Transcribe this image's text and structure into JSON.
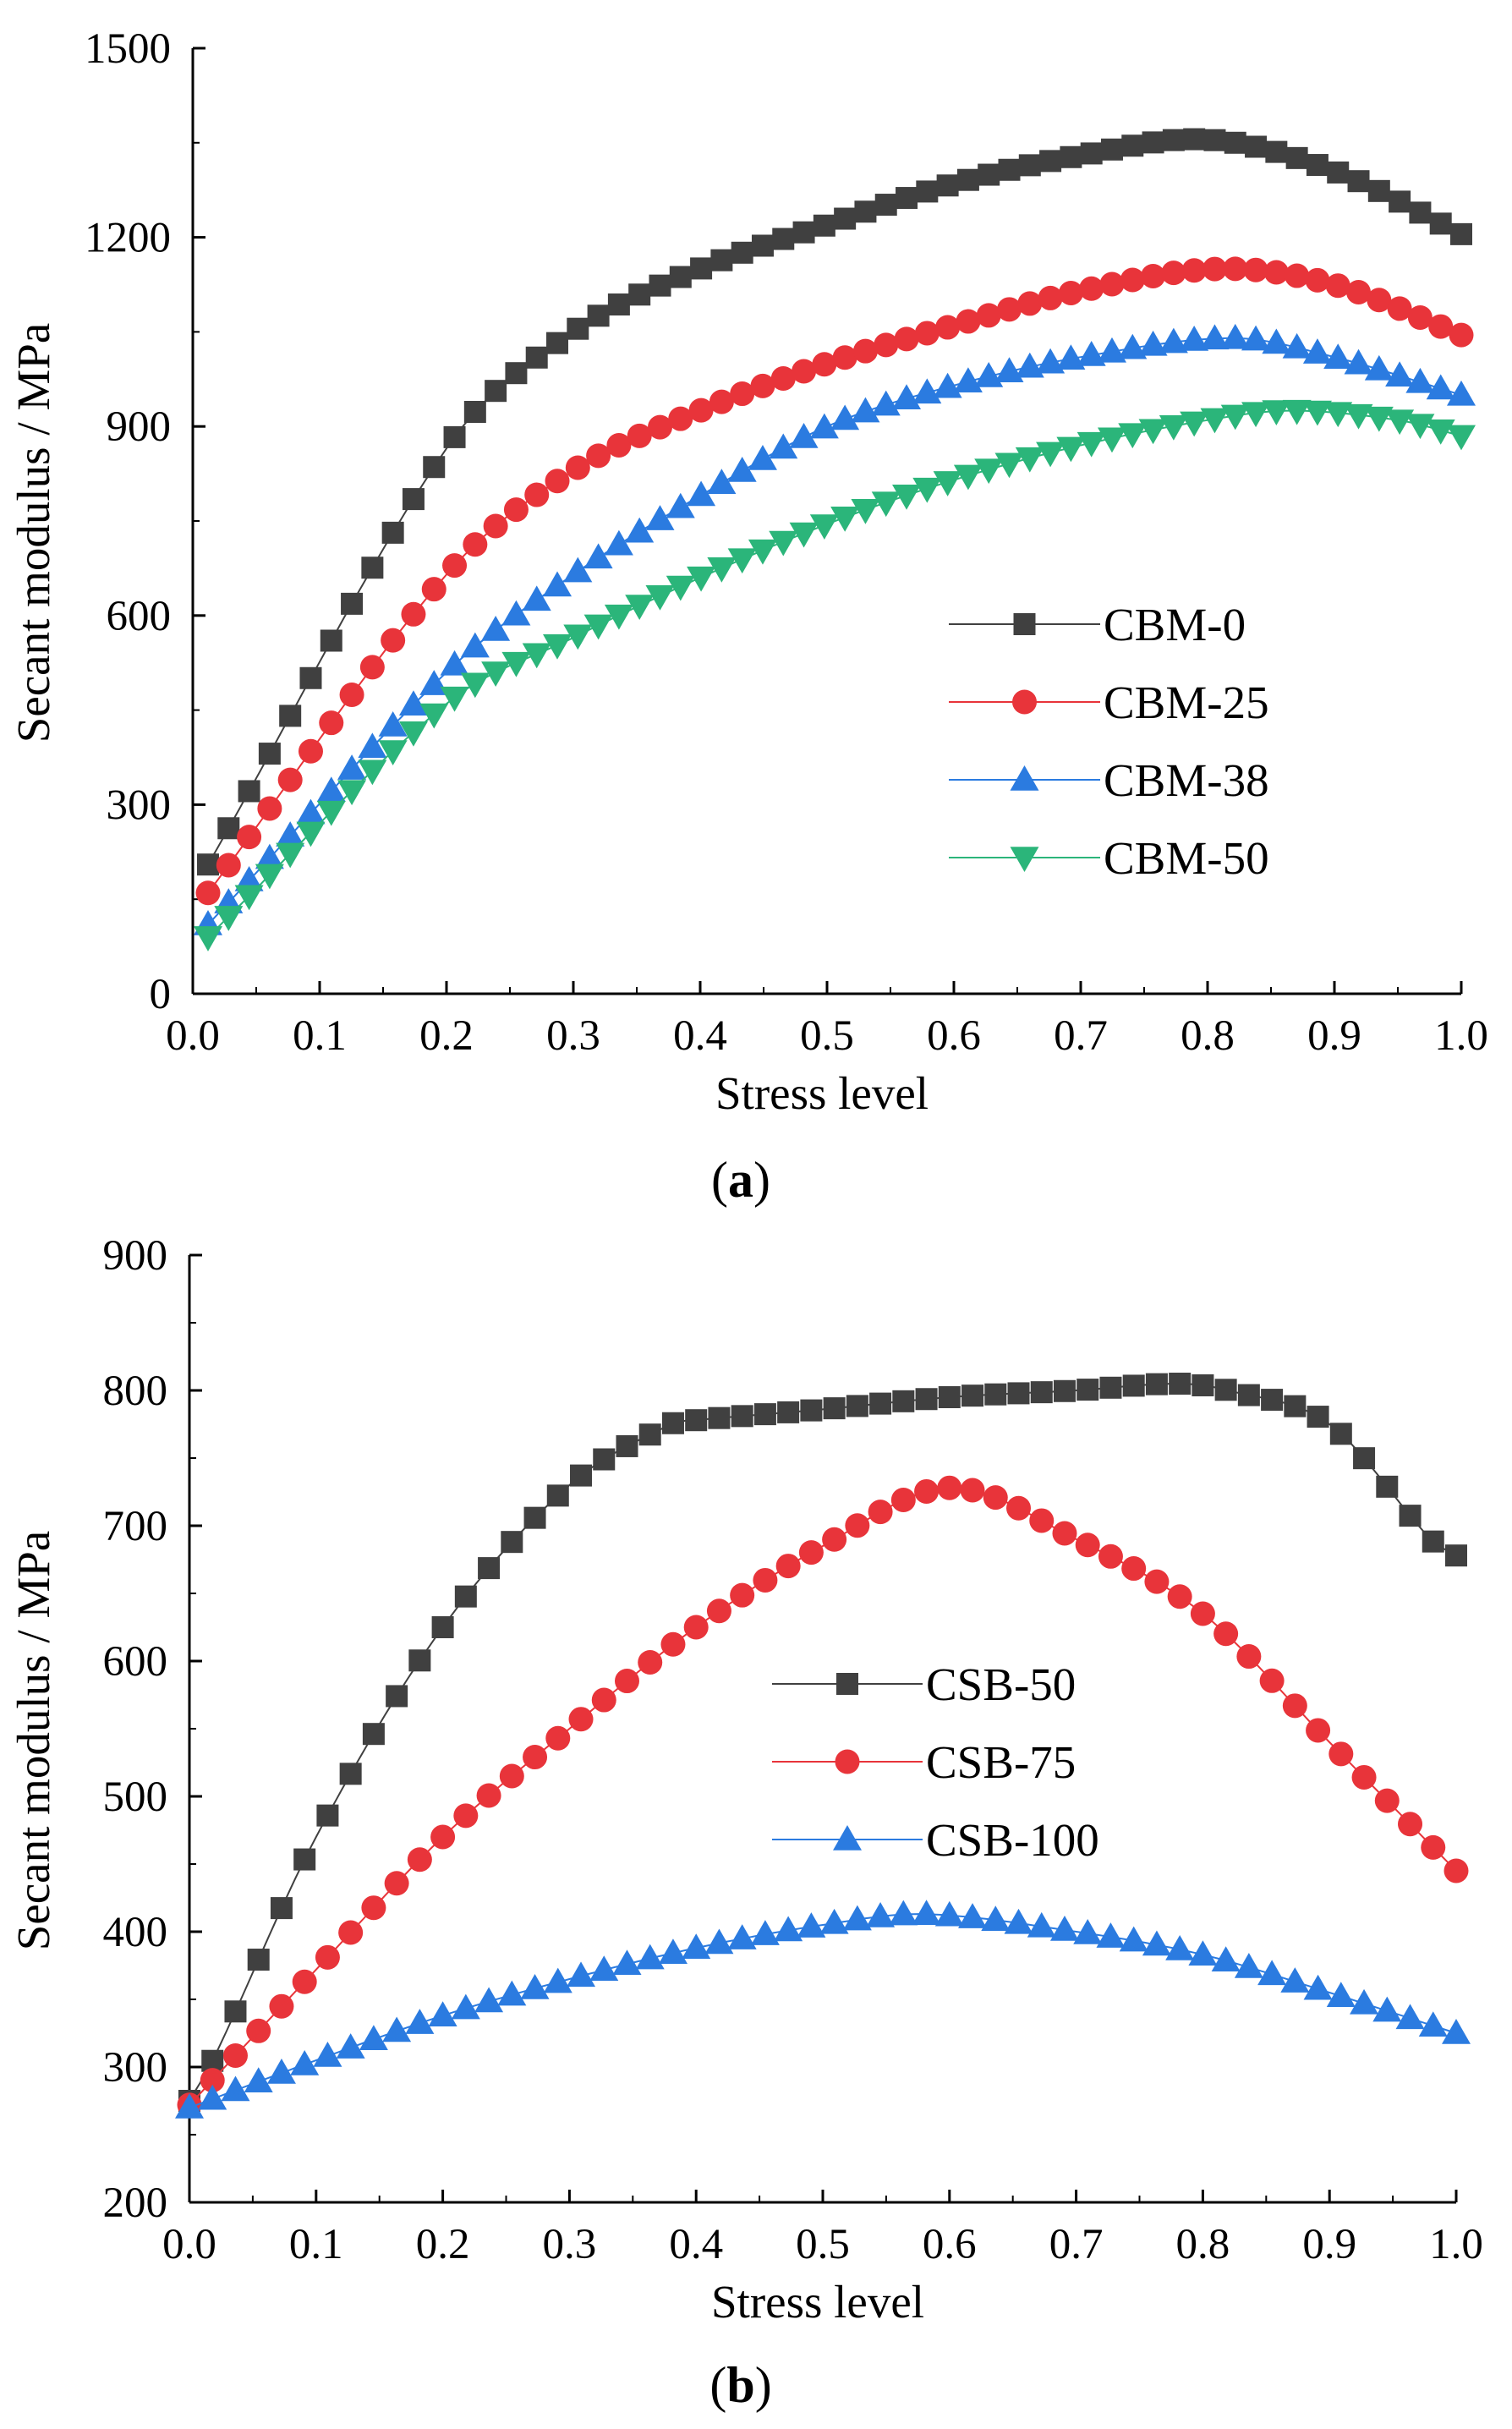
{
  "chart_data": [
    {
      "type": "line",
      "panel_label": "a",
      "title": "",
      "xlabel": "Stress level",
      "ylabel": "Secant modulus / MPa",
      "xlim": [
        0.0,
        1.0
      ],
      "ylim": [
        0,
        1500
      ],
      "xticks": [
        0.0,
        0.1,
        0.2,
        0.3,
        0.4,
        0.5,
        0.6,
        0.7,
        0.8,
        0.9,
        1.0
      ],
      "xtick_labels": [
        "0.0",
        "0.1",
        "0.2",
        "0.3",
        "0.4",
        "0.5",
        "0.6",
        "0.7",
        "0.8",
        "0.9",
        "1.0"
      ],
      "yticks": [
        0,
        300,
        600,
        900,
        1200,
        1500
      ],
      "ytick_labels": [
        "0",
        "300",
        "600",
        "900",
        "1200",
        "1500"
      ],
      "legend_position": "center-right",
      "series": [
        {
          "name": "CBM-0",
          "color": "#404040",
          "marker": "square",
          "points": [
            [
              0.012,
              205
            ],
            [
              0.2,
              865
            ],
            [
              0.3,
              1050
            ],
            [
              0.4,
              1150
            ],
            [
              0.5,
              1220
            ],
            [
              0.6,
              1285
            ],
            [
              0.7,
              1330
            ],
            [
              0.8,
              1355
            ],
            [
              0.9,
              1305
            ],
            [
              1.0,
              1205
            ]
          ]
        },
        {
          "name": "CBM-25",
          "color": "#e8343a",
          "marker": "circle",
          "points": [
            [
              0.012,
              160
            ],
            [
              0.2,
              665
            ],
            [
              0.3,
              830
            ],
            [
              0.4,
              925
            ],
            [
              0.5,
              1000
            ],
            [
              0.6,
              1060
            ],
            [
              0.7,
              1115
            ],
            [
              0.81,
              1150
            ],
            [
              0.9,
              1125
            ],
            [
              1.0,
              1045
            ]
          ]
        },
        {
          "name": "CBM-38",
          "color": "#2b7be0",
          "marker": "triangle-up",
          "points": [
            [
              0.012,
              110
            ],
            [
              0.2,
              510
            ],
            [
              0.3,
              665
            ],
            [
              0.4,
              790
            ],
            [
              0.5,
              900
            ],
            [
              0.6,
              965
            ],
            [
              0.7,
              1010
            ],
            [
              0.82,
              1040
            ],
            [
              0.9,
              1010
            ],
            [
              1.0,
              950
            ]
          ]
        },
        {
          "name": "CBM-50",
          "color": "#2bb57a",
          "marker": "triangle-down",
          "points": [
            [
              0.012,
              90
            ],
            [
              0.2,
              460
            ],
            [
              0.3,
              565
            ],
            [
              0.4,
              660
            ],
            [
              0.5,
              745
            ],
            [
              0.6,
              815
            ],
            [
              0.7,
              870
            ],
            [
              0.8,
              910
            ],
            [
              0.865,
              925
            ],
            [
              0.95,
              910
            ],
            [
              1.0,
              885
            ]
          ]
        }
      ]
    },
    {
      "type": "line",
      "panel_label": "b",
      "title": "",
      "xlabel": "Stress level",
      "ylabel": "Secant modulus / MPa",
      "xlim": [
        0.0,
        1.0
      ],
      "ylim": [
        200,
        900
      ],
      "xticks": [
        0.0,
        0.1,
        0.2,
        0.3,
        0.4,
        0.5,
        0.6,
        0.7,
        0.8,
        0.9,
        1.0
      ],
      "xtick_labels": [
        "0.0",
        "0.1",
        "0.2",
        "0.3",
        "0.4",
        "0.5",
        "0.6",
        "0.7",
        "0.8",
        "0.9",
        "1.0"
      ],
      "yticks": [
        200,
        300,
        400,
        500,
        600,
        700,
        800,
        900
      ],
      "ytick_labels": [
        "200",
        "300",
        "400",
        "500",
        "600",
        "700",
        "800",
        "900"
      ],
      "legend_position": "center",
      "series": [
        {
          "name": "CSB-50",
          "color": "#404040",
          "marker": "square",
          "points": [
            [
              0.0,
              275
            ],
            [
              0.02,
              308
            ],
            [
              0.1,
              470
            ],
            [
              0.2,
              625
            ],
            [
              0.3,
              730
            ],
            [
              0.38,
              775
            ],
            [
              0.4,
              778
            ],
            [
              0.5,
              786
            ],
            [
              0.6,
              795
            ],
            [
              0.7,
              800
            ],
            [
              0.78,
              805
            ],
            [
              0.82,
              800
            ],
            [
              0.9,
              775
            ],
            [
              0.98,
              690
            ],
            [
              1.0,
              678
            ]
          ]
        },
        {
          "name": "CSB-75",
          "color": "#e8343a",
          "marker": "circle",
          "points": [
            [
              0.0,
              272
            ],
            [
              0.1,
              372
            ],
            [
              0.2,
              470
            ],
            [
              0.3,
              550
            ],
            [
              0.4,
              625
            ],
            [
              0.5,
              685
            ],
            [
              0.6,
              728
            ],
            [
              0.7,
              690
            ],
            [
              0.8,
              635
            ],
            [
              0.9,
              540
            ],
            [
              1.0,
              445
            ]
          ]
        },
        {
          "name": "CSB-100",
          "color": "#2b7be0",
          "marker": "triangle-up",
          "points": [
            [
              0.0,
              270
            ],
            [
              0.1,
              305
            ],
            [
              0.2,
              338
            ],
            [
              0.3,
              365
            ],
            [
              0.4,
              388
            ],
            [
              0.5,
              405
            ],
            [
              0.58,
              413
            ],
            [
              0.7,
              400
            ],
            [
              0.8,
              383
            ],
            [
              0.9,
              355
            ],
            [
              1.0,
              325
            ]
          ]
        }
      ]
    }
  ]
}
